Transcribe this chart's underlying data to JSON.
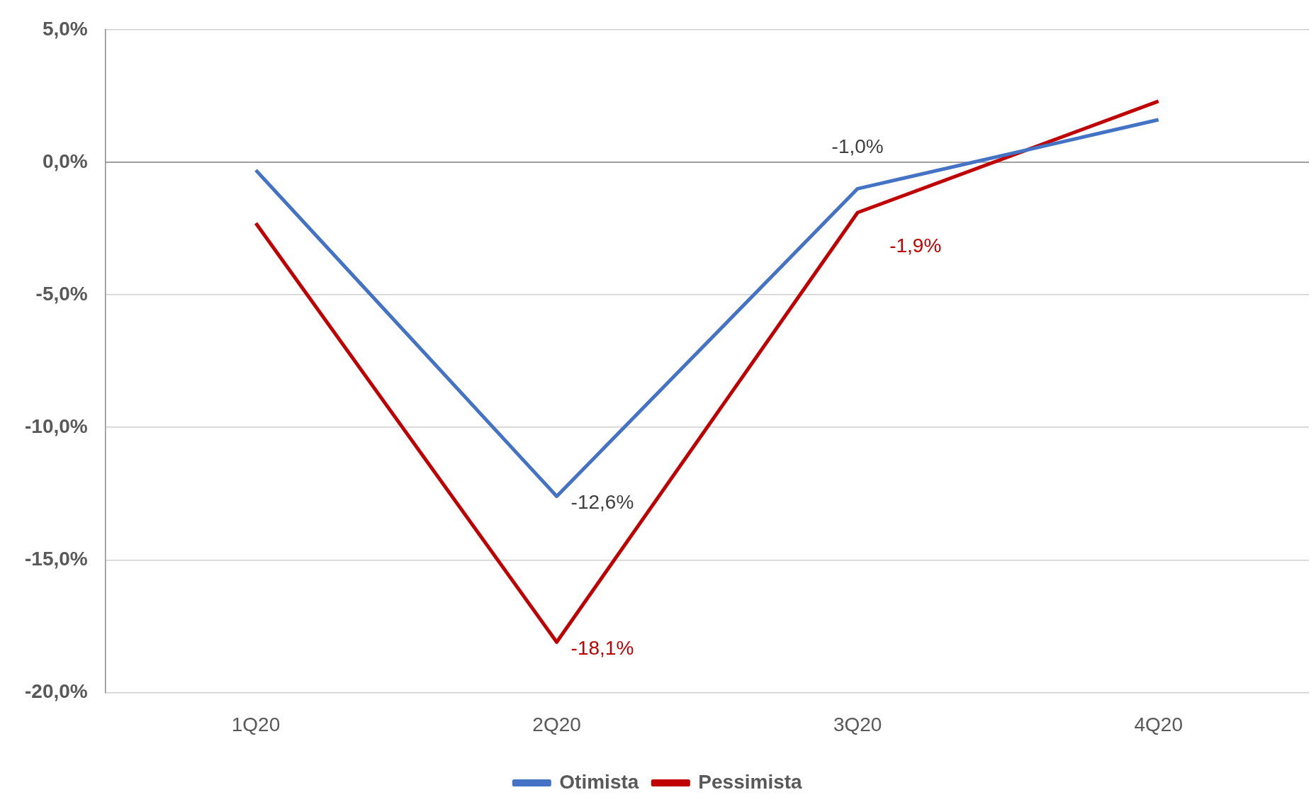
{
  "chart_data": {
    "type": "line",
    "categories": [
      "1Q20",
      "2Q20",
      "3Q20",
      "4Q20"
    ],
    "series": [
      {
        "name": "Otimista",
        "color": "#4472c4",
        "values": [
          -0.3,
          -12.6,
          -1.0,
          1.6
        ],
        "value_labels": [
          null,
          "-12,6%",
          "-1,0%",
          null
        ]
      },
      {
        "name": "Pessimista",
        "color": "#c00000",
        "values": [
          -2.3,
          -18.1,
          -1.9,
          2.3
        ],
        "value_labels": [
          null,
          "-18,1%",
          "-1,9%",
          null
        ]
      }
    ],
    "ylim": [
      -20,
      5
    ],
    "yticks": [
      {
        "value": -20,
        "label": "-20,0%"
      },
      {
        "value": -15,
        "label": "-15,0%"
      },
      {
        "value": -10,
        "label": "-10,0%"
      },
      {
        "value": -5,
        "label": "-5,0%"
      },
      {
        "value": 0,
        "label": "0,0%"
      },
      {
        "value": 5,
        "label": "5,0%"
      }
    ],
    "grid": "y",
    "legend": "bottom",
    "marker": "none",
    "line_style": "solid"
  }
}
